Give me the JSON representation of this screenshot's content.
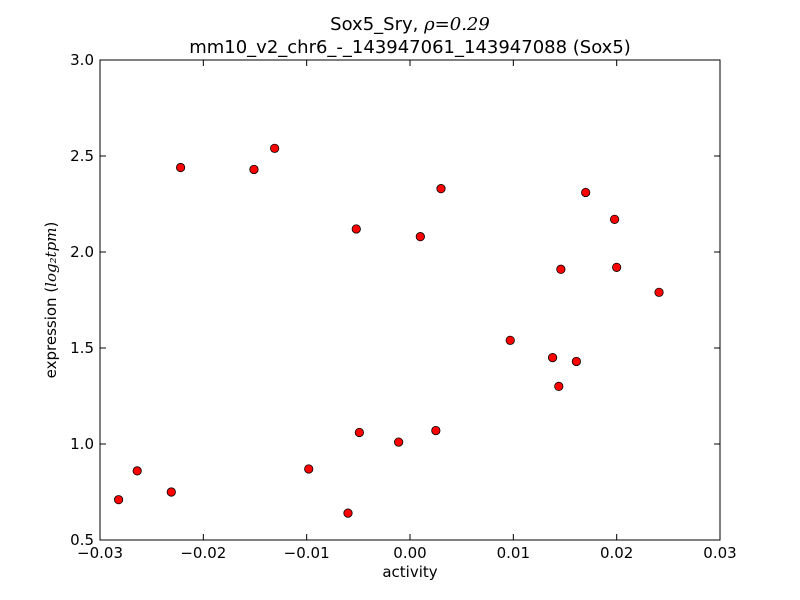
{
  "chart_data": {
    "type": "scatter",
    "title_line1_prefix": "Sox5_Sry, ",
    "title_line1_math": "ρ=0.29",
    "title_line2": "mm10_v2_chr6_-_143947061_143947088 (Sox5)",
    "xlabel": "activity",
    "ylabel_prefix": "expression (",
    "ylabel_math": "log₂tpm",
    "ylabel_suffix": ")",
    "xlim": [
      -0.03,
      0.03
    ],
    "ylim": [
      0.5,
      3.0
    ],
    "x_ticks": [
      -0.03,
      -0.02,
      -0.01,
      0.0,
      0.01,
      0.02,
      0.03
    ],
    "x_tick_labels": [
      "−0.03",
      "−0.02",
      "−0.01",
      "0.00",
      "0.01",
      "0.02",
      "0.03"
    ],
    "y_ticks": [
      0.5,
      1.0,
      1.5,
      2.0,
      2.5,
      3.0
    ],
    "y_tick_labels": [
      "0.5",
      "1.0",
      "1.5",
      "2.0",
      "2.5",
      "3.0"
    ],
    "grid": false,
    "marker_color": "#ff0000",
    "marker_edge": "#000000",
    "points": [
      {
        "x": -0.0282,
        "y": 0.71
      },
      {
        "x": -0.0264,
        "y": 0.86
      },
      {
        "x": -0.0231,
        "y": 0.75
      },
      {
        "x": -0.0222,
        "y": 2.44
      },
      {
        "x": -0.0151,
        "y": 2.43
      },
      {
        "x": -0.0131,
        "y": 2.54
      },
      {
        "x": -0.0098,
        "y": 0.87
      },
      {
        "x": -0.006,
        "y": 0.64
      },
      {
        "x": -0.0052,
        "y": 2.12
      },
      {
        "x": -0.0049,
        "y": 1.06
      },
      {
        "x": -0.0011,
        "y": 1.01
      },
      {
        "x": 0.001,
        "y": 2.08
      },
      {
        "x": 0.0025,
        "y": 1.07
      },
      {
        "x": 0.003,
        "y": 2.33
      },
      {
        "x": 0.0097,
        "y": 1.54
      },
      {
        "x": 0.0138,
        "y": 1.45
      },
      {
        "x": 0.0144,
        "y": 1.3
      },
      {
        "x": 0.0146,
        "y": 1.91
      },
      {
        "x": 0.0161,
        "y": 1.43
      },
      {
        "x": 0.017,
        "y": 2.31
      },
      {
        "x": 0.0198,
        "y": 2.17
      },
      {
        "x": 0.02,
        "y": 1.92
      },
      {
        "x": 0.0241,
        "y": 1.79
      }
    ]
  }
}
